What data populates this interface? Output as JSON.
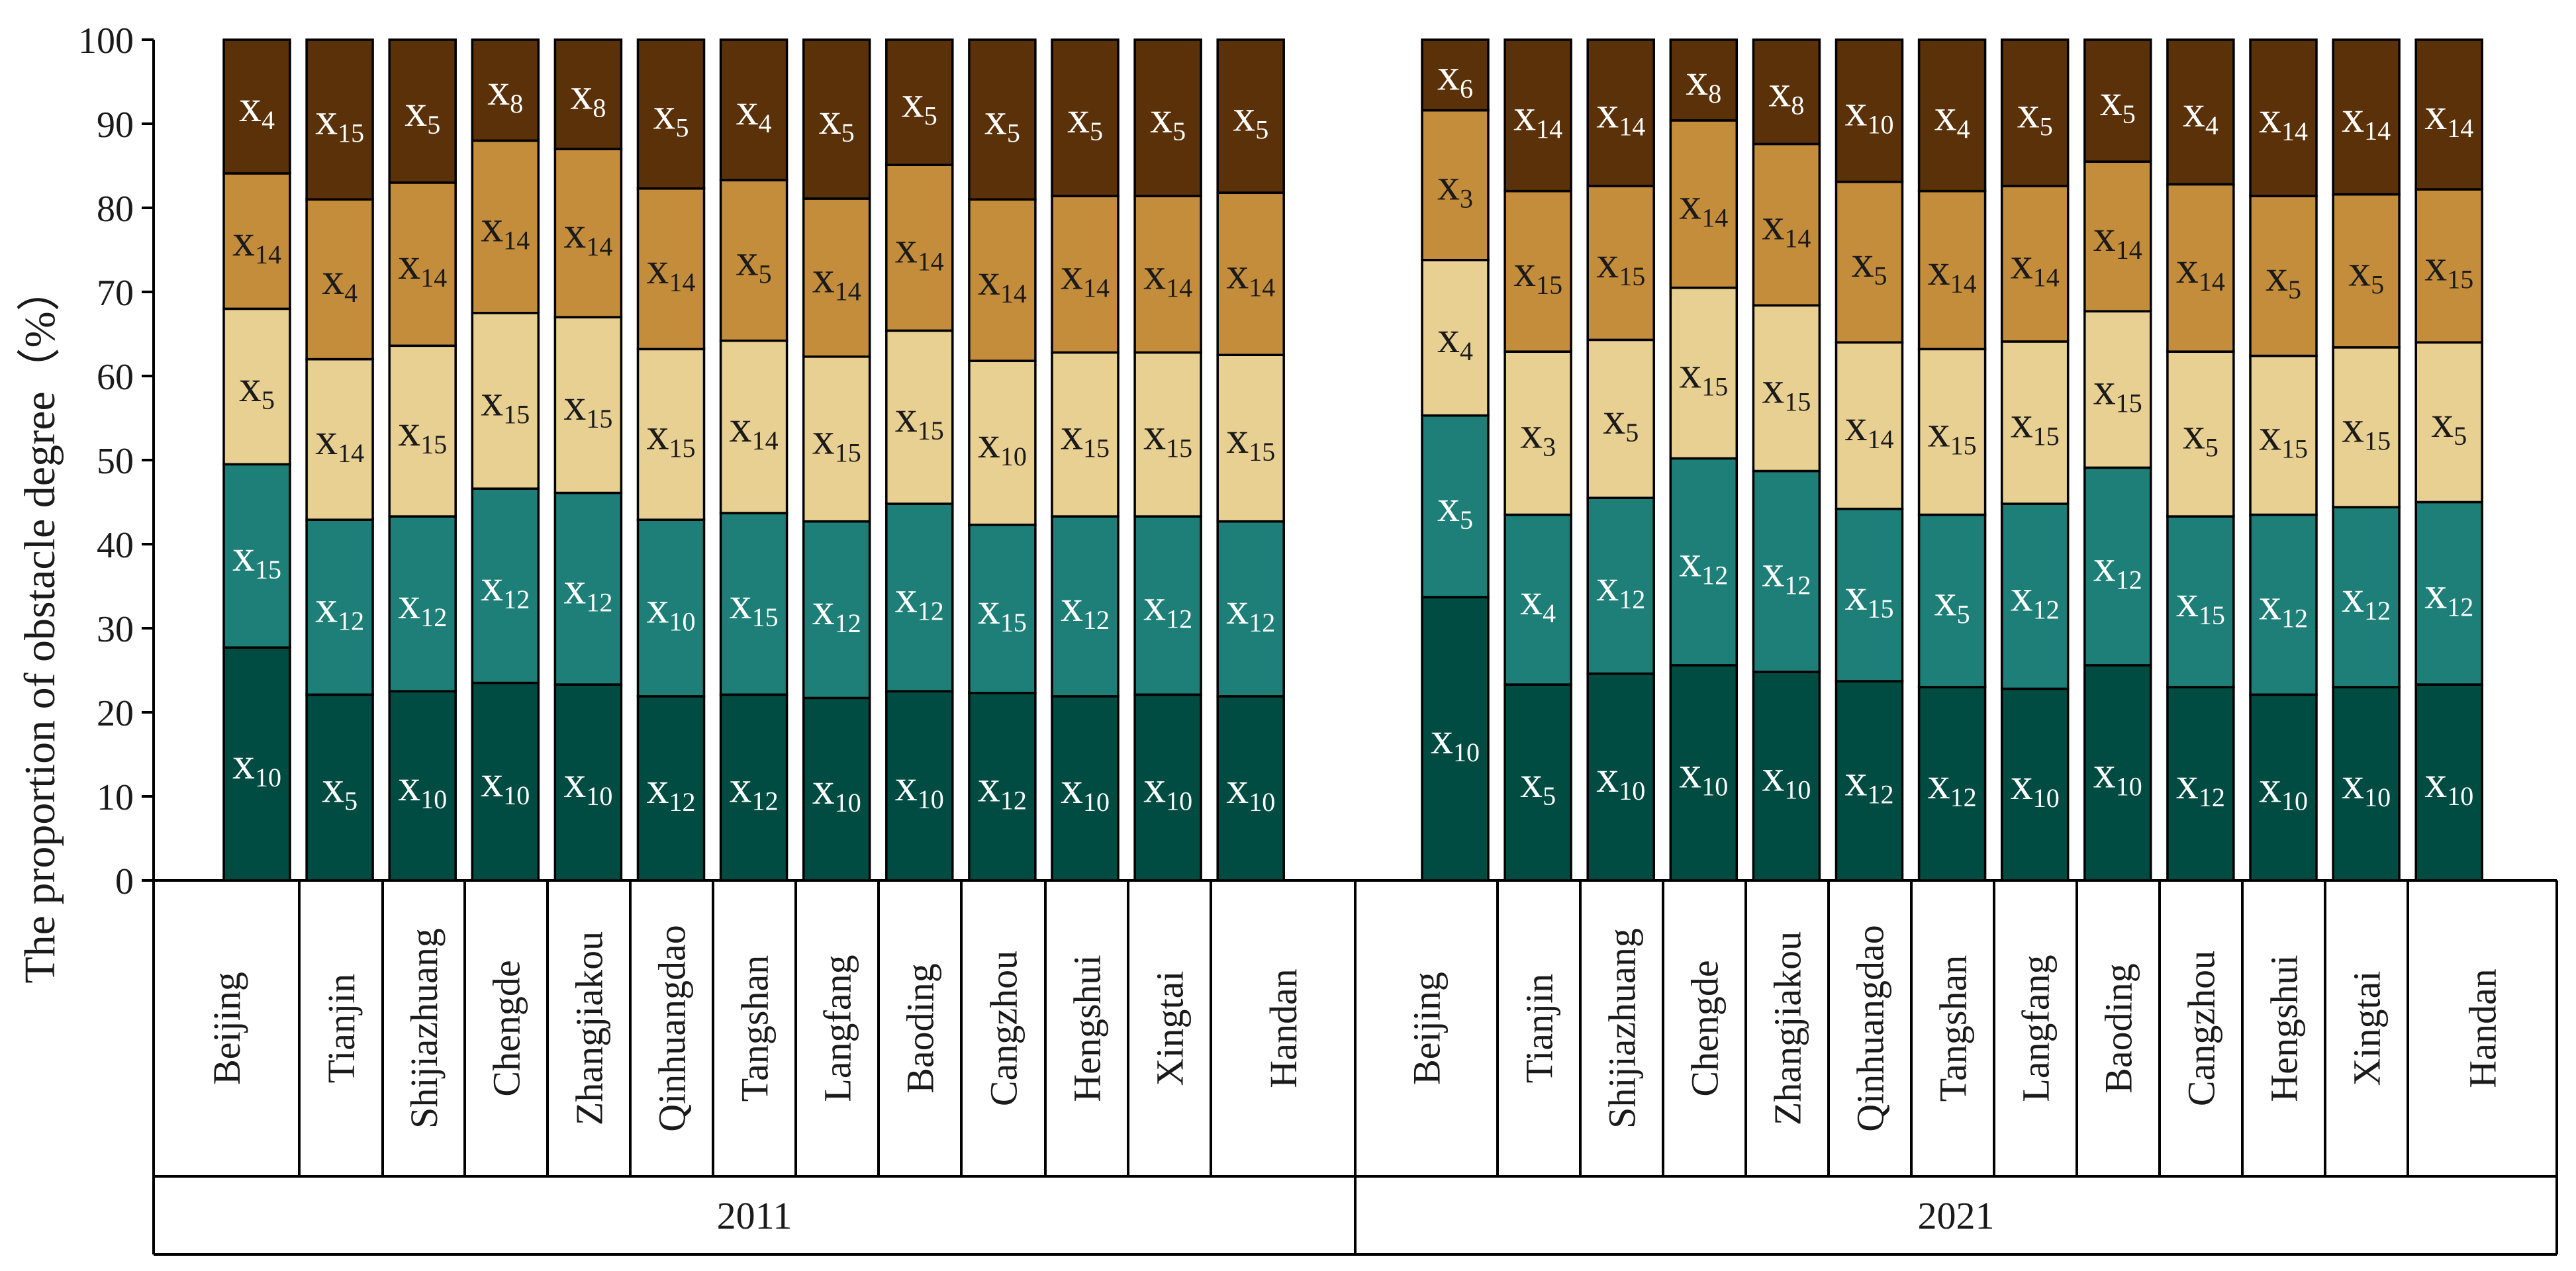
{
  "chart_data": {
    "type": "bar",
    "stacked": true,
    "ylabel": "The proportion of obstacle degree（%）",
    "ylim": [
      0,
      100
    ],
    "yticks": [
      0,
      10,
      20,
      30,
      40,
      50,
      60,
      70,
      80,
      90,
      100
    ],
    "colors": {
      "layer1": "#004c42",
      "layer2": "#1d7f77",
      "layer3": "#e8cf92",
      "layer4": "#c48d3c",
      "layer5": "#5a3108",
      "dark_label": "#ffffff",
      "light_label": "#1a1a1a"
    },
    "groups": [
      {
        "year": "2011",
        "cities": [
          {
            "name": "Beijing",
            "cum": [
              27.7,
              49.5,
              68.0,
              84.1,
              100
            ],
            "labels": [
              [
                "x",
                "10"
              ],
              [
                "x",
                "15"
              ],
              [
                "x",
                "5"
              ],
              [
                "x",
                "14"
              ],
              [
                "x",
                "4"
              ]
            ]
          },
          {
            "name": "Tianjin",
            "cum": [
              22.1,
              42.9,
              62.0,
              81.0,
              100
            ],
            "labels": [
              [
                "x",
                "5"
              ],
              [
                "x",
                "12"
              ],
              [
                "x",
                "14"
              ],
              [
                "x",
                "4"
              ],
              [
                "x",
                "15"
              ]
            ]
          },
          {
            "name": "Shijiazhuang",
            "cum": [
              22.5,
              43.3,
              63.6,
              83.0,
              100
            ],
            "labels": [
              [
                "x",
                "10"
              ],
              [
                "x",
                "12"
              ],
              [
                "x",
                "15"
              ],
              [
                "x",
                "14"
              ],
              [
                "x",
                "5"
              ]
            ]
          },
          {
            "name": "Chengde",
            "cum": [
              23.5,
              46.6,
              67.5,
              88.0,
              100
            ],
            "labels": [
              [
                "x",
                "10"
              ],
              [
                "x",
                "12"
              ],
              [
                "x",
                "15"
              ],
              [
                "x",
                "14"
              ],
              [
                "x",
                "8"
              ]
            ]
          },
          {
            "name": "Zhangjiakou",
            "cum": [
              23.3,
              46.1,
              67.0,
              87.0,
              100
            ],
            "labels": [
              [
                "x",
                "10"
              ],
              [
                "x",
                "12"
              ],
              [
                "x",
                "15"
              ],
              [
                "x",
                "14"
              ],
              [
                "x",
                "8"
              ]
            ]
          },
          {
            "name": "Qinhuangdao",
            "cum": [
              21.9,
              42.9,
              63.2,
              82.3,
              100
            ],
            "labels": [
              [
                "x",
                "12"
              ],
              [
                "x",
                "10"
              ],
              [
                "x",
                "15"
              ],
              [
                "x",
                "14"
              ],
              [
                "x",
                "5"
              ]
            ]
          },
          {
            "name": "Tangshan",
            "cum": [
              22.1,
              43.7,
              64.2,
              83.3,
              100
            ],
            "labels": [
              [
                "x",
                "12"
              ],
              [
                "x",
                "15"
              ],
              [
                "x",
                "14"
              ],
              [
                "x",
                "5"
              ],
              [
                "x",
                "4"
              ]
            ]
          },
          {
            "name": "Langfang",
            "cum": [
              21.7,
              42.7,
              62.3,
              81.1,
              100
            ],
            "labels": [
              [
                "x",
                "10"
              ],
              [
                "x",
                "12"
              ],
              [
                "x",
                "15"
              ],
              [
                "x",
                "14"
              ],
              [
                "x",
                "5"
              ]
            ]
          },
          {
            "name": "Baoding",
            "cum": [
              22.5,
              44.8,
              65.4,
              85.1,
              100
            ],
            "labels": [
              [
                "x",
                "10"
              ],
              [
                "x",
                "12"
              ],
              [
                "x",
                "15"
              ],
              [
                "x",
                "14"
              ],
              [
                "x",
                "5"
              ]
            ]
          },
          {
            "name": "Cangzhou",
            "cum": [
              22.3,
              42.3,
              61.8,
              81.0,
              100
            ],
            "labels": [
              [
                "x",
                "12"
              ],
              [
                "x",
                "15"
              ],
              [
                "x",
                "10"
              ],
              [
                "x",
                "14"
              ],
              [
                "x",
                "5"
              ]
            ]
          },
          {
            "name": "Hengshui",
            "cum": [
              21.9,
              43.3,
              62.8,
              81.4,
              100
            ],
            "labels": [
              [
                "x",
                "10"
              ],
              [
                "x",
                "12"
              ],
              [
                "x",
                "15"
              ],
              [
                "x",
                "14"
              ],
              [
                "x",
                "5"
              ]
            ]
          },
          {
            "name": "Xingtai",
            "cum": [
              22.1,
              43.3,
              62.8,
              81.4,
              100
            ],
            "labels": [
              [
                "x",
                "10"
              ],
              [
                "x",
                "12"
              ],
              [
                "x",
                "15"
              ],
              [
                "x",
                "14"
              ],
              [
                "x",
                "5"
              ]
            ]
          },
          {
            "name": "Handan",
            "cum": [
              21.9,
              42.7,
              62.5,
              81.8,
              100
            ],
            "labels": [
              [
                "x",
                "10"
              ],
              [
                "x",
                "12"
              ],
              [
                "x",
                "15"
              ],
              [
                "x",
                "14"
              ],
              [
                "x",
                "5"
              ]
            ]
          }
        ]
      },
      {
        "year": "2021",
        "cities": [
          {
            "name": "Beijing",
            "cum": [
              33.7,
              55.3,
              73.8,
              91.6,
              100
            ],
            "labels": [
              [
                "x",
                "10"
              ],
              [
                "x",
                "5"
              ],
              [
                "x",
                "4"
              ],
              [
                "x",
                "3"
              ],
              [
                "x",
                "6"
              ]
            ]
          },
          {
            "name": "Tianjin",
            "cum": [
              23.3,
              43.5,
              62.9,
              82.0,
              100
            ],
            "labels": [
              [
                "x",
                "5"
              ],
              [
                "x",
                "4"
              ],
              [
                "x",
                "3"
              ],
              [
                "x",
                "15"
              ],
              [
                "x",
                "14"
              ]
            ]
          },
          {
            "name": "Shijiazhuang",
            "cum": [
              24.6,
              45.5,
              64.3,
              82.6,
              100
            ],
            "labels": [
              [
                "x",
                "10"
              ],
              [
                "x",
                "12"
              ],
              [
                "x",
                "5"
              ],
              [
                "x",
                "15"
              ],
              [
                "x",
                "14"
              ]
            ]
          },
          {
            "name": "Chengde",
            "cum": [
              25.6,
              50.2,
              70.5,
              90.4,
              100
            ],
            "labels": [
              [
                "x",
                "10"
              ],
              [
                "x",
                "12"
              ],
              [
                "x",
                "15"
              ],
              [
                "x",
                "14"
              ],
              [
                "x",
                "8"
              ]
            ]
          },
          {
            "name": "Zhangjiakou",
            "cum": [
              24.8,
              48.7,
              68.4,
              87.6,
              100
            ],
            "labels": [
              [
                "x",
                "10"
              ],
              [
                "x",
                "12"
              ],
              [
                "x",
                "15"
              ],
              [
                "x",
                "14"
              ],
              [
                "x",
                "8"
              ]
            ]
          },
          {
            "name": "Qinhuangdao",
            "cum": [
              23.7,
              44.2,
              64.0,
              83.1,
              100
            ],
            "labels": [
              [
                "x",
                "12"
              ],
              [
                "x",
                "15"
              ],
              [
                "x",
                "14"
              ],
              [
                "x",
                "5"
              ],
              [
                "x",
                "10"
              ]
            ]
          },
          {
            "name": "Tangshan",
            "cum": [
              23.0,
              43.5,
              63.2,
              82.0,
              100
            ],
            "labels": [
              [
                "x",
                "12"
              ],
              [
                "x",
                "5"
              ],
              [
                "x",
                "15"
              ],
              [
                "x",
                "14"
              ],
              [
                "x",
                "4"
              ]
            ]
          },
          {
            "name": "Langfang",
            "cum": [
              22.8,
              44.8,
              64.1,
              82.6,
              100
            ],
            "labels": [
              [
                "x",
                "10"
              ],
              [
                "x",
                "12"
              ],
              [
                "x",
                "15"
              ],
              [
                "x",
                "14"
              ],
              [
                "x",
                "5"
              ]
            ]
          },
          {
            "name": "Baoding",
            "cum": [
              25.6,
              49.1,
              67.7,
              85.5,
              100
            ],
            "labels": [
              [
                "x",
                "10"
              ],
              [
                "x",
                "12"
              ],
              [
                "x",
                "15"
              ],
              [
                "x",
                "14"
              ],
              [
                "x",
                "5"
              ]
            ]
          },
          {
            "name": "Cangzhou",
            "cum": [
              23.0,
              43.3,
              62.9,
              82.8,
              100
            ],
            "labels": [
              [
                "x",
                "12"
              ],
              [
                "x",
                "15"
              ],
              [
                "x",
                "5"
              ],
              [
                "x",
                "14"
              ],
              [
                "x",
                "4"
              ]
            ]
          },
          {
            "name": "Hengshui",
            "cum": [
              22.1,
              43.5,
              62.4,
              81.4,
              100
            ],
            "labels": [
              [
                "x",
                "10"
              ],
              [
                "x",
                "12"
              ],
              [
                "x",
                "15"
              ],
              [
                "x",
                "5"
              ],
              [
                "x",
                "14"
              ]
            ]
          },
          {
            "name": "Xingtai",
            "cum": [
              23.0,
              44.4,
              63.4,
              81.6,
              100
            ],
            "labels": [
              [
                "x",
                "10"
              ],
              [
                "x",
                "12"
              ],
              [
                "x",
                "15"
              ],
              [
                "x",
                "5"
              ],
              [
                "x",
                "14"
              ]
            ]
          },
          {
            "name": "Handan",
            "cum": [
              23.3,
              45.0,
              64.0,
              82.2,
              100
            ],
            "labels": [
              [
                "x",
                "10"
              ],
              [
                "x",
                "12"
              ],
              [
                "x",
                "5"
              ],
              [
                "x",
                "15"
              ],
              [
                "x",
                "14"
              ]
            ]
          }
        ]
      }
    ]
  }
}
